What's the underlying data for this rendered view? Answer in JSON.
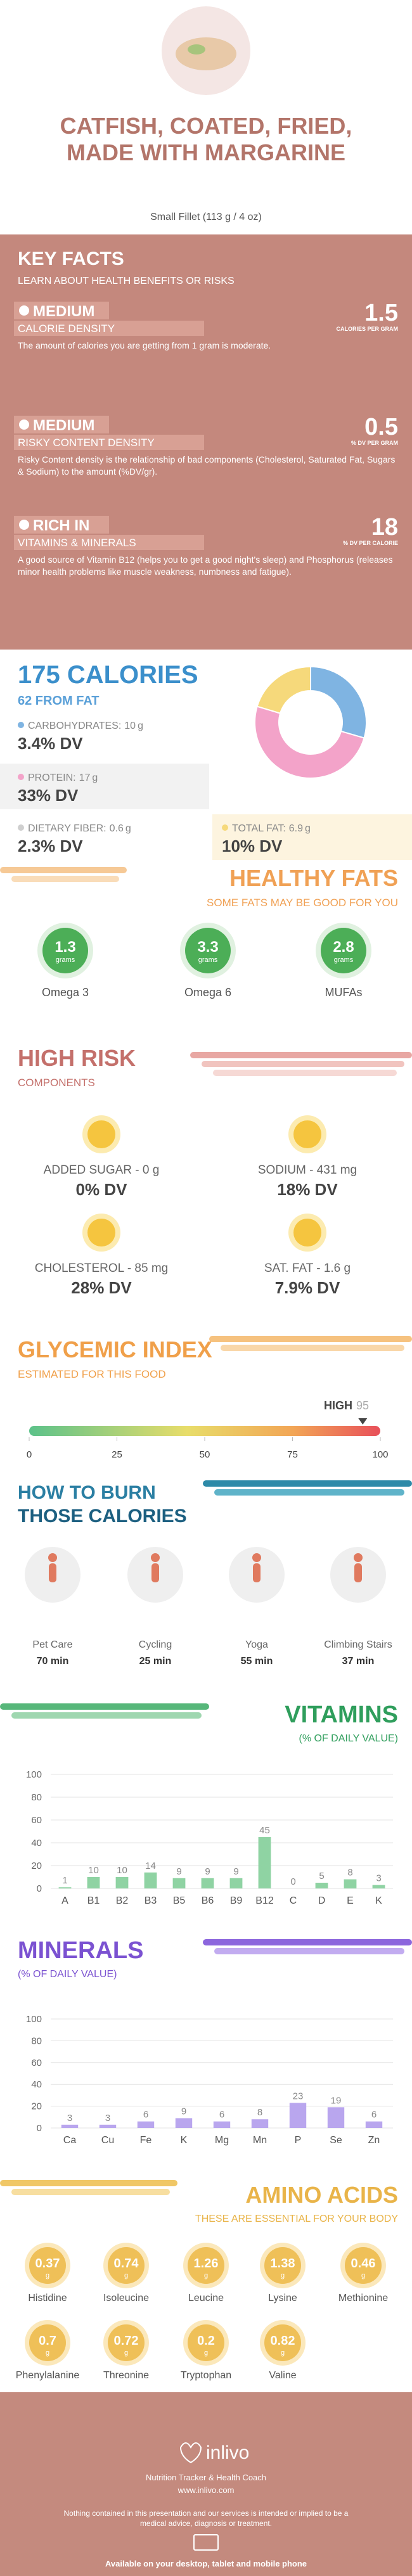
{
  "header": {
    "title": "CATFISH, COATED, FRIED, MADE WITH MARGARINE",
    "serving": "Small Fillet (113 g / 4 oz)"
  },
  "key_facts": {
    "title": "KEY FACTS",
    "subtitle": "LEARN ABOUT HEALTH BENEFITS OR RISKS",
    "facts": [
      {
        "level": "MEDIUM",
        "label": "CALORIE DENSITY",
        "value": 1.5,
        "unit": "CALORIES PER GRAM",
        "description": "The amount of calories you are getting from 1 gram is moderate."
      },
      {
        "level": "MEDIUM",
        "label": "RISKY CONTENT DENSITY",
        "value": 0.5,
        "unit": "% DV PER GRAM",
        "description": "Risky Content density is the relationship of bad components (Cholesterol, Saturated Fat, Sugars & Sodium) to the amount (%DV/gr)."
      },
      {
        "level": "RICH IN",
        "label": "VITAMINS & MINERALS",
        "value": 18,
        "unit": "% DV PER CALORIE",
        "description": "A good source of Vitamin B12 (helps you to get a good night's sleep) and Phosphorus (releases minor health problems like muscle weakness, numbness and fatigue)."
      }
    ]
  },
  "calories": {
    "title": "175 CALORIES",
    "subtitle": "62 FROM FAT",
    "nutrients": [
      {
        "name": "CARBOHYDRATES:",
        "amount": 10,
        "unit": "g",
        "dv": "3.4% DV",
        "color": "#7fb4e2"
      },
      {
        "name": "PROTEIN:",
        "amount": 17,
        "unit": "g",
        "dv": "33% DV",
        "color": "#f3a3c9"
      },
      {
        "name": "DIETARY FIBER:",
        "amount": 0.6,
        "unit": "g",
        "dv": "2.3% DV"
      },
      {
        "name": "TOTAL FAT:",
        "amount": 6.9,
        "unit": "g",
        "dv": "10% DV",
        "color": "#f6d97b"
      }
    ]
  },
  "healthy_fats": {
    "title": "HEALTHY FATS",
    "subtitle": "SOME FATS MAY BE GOOD FOR YOU",
    "items": [
      {
        "value": 1.3,
        "unit": "grams",
        "name": "Omega 3"
      },
      {
        "value": 3.3,
        "unit": "grams",
        "name": "Omega 6"
      },
      {
        "value": 2.8,
        "unit": "grams",
        "name": "MUFAs"
      }
    ]
  },
  "high_risk": {
    "title": "HIGH RISK",
    "subtitle": "COMPONENTS",
    "items": [
      {
        "label": "ADDED SUGAR - 0 g",
        "dv": "0% DV"
      },
      {
        "label": "SODIUM - 431 mg",
        "dv": "18% DV"
      },
      {
        "label": "CHOLESTEROL - 85 mg",
        "dv": "28% DV"
      },
      {
        "label": "SAT. FAT - 1.6 g",
        "dv": "7.9% DV"
      }
    ]
  },
  "glycemic_index": {
    "title": "GLYCEMIC INDEX",
    "subtitle": "ESTIMATED FOR THIS FOOD",
    "level": "HIGH",
    "value": 95,
    "xlim": [
      0,
      100
    ],
    "xticks": [
      0,
      25,
      50,
      75,
      100
    ]
  },
  "burn": {
    "title": "HOW TO BURN",
    "title2": "THOSE CALORIES",
    "activities": [
      {
        "name": "Pet Care",
        "time": "70 min"
      },
      {
        "name": "Cycling",
        "time": "25 min"
      },
      {
        "name": "Yoga",
        "time": "55 min"
      },
      {
        "name": "Climbing Stairs",
        "time": "37 min"
      }
    ]
  },
  "chart_data": [
    {
      "type": "bar",
      "title": "VITAMINS",
      "subtitle": "(% OF DAILY VALUE)",
      "categories": [
        "A",
        "B1",
        "B2",
        "B3",
        "B5",
        "B6",
        "B9",
        "B12",
        "C",
        "D",
        "E",
        "K"
      ],
      "values": [
        1,
        10,
        10,
        14,
        9,
        9,
        9,
        45,
        0,
        5,
        8,
        3
      ],
      "color": "#8fd3a3",
      "ylim": [
        0,
        100
      ],
      "yticks": [
        0,
        20,
        40,
        60,
        80,
        100
      ],
      "grid": true
    },
    {
      "type": "bar",
      "title": "MINERALS",
      "subtitle": "(% OF DAILY VALUE)",
      "categories": [
        "Ca",
        "Cu",
        "Fe",
        "K",
        "Mg",
        "Mn",
        "P",
        "Se",
        "Zn"
      ],
      "values": [
        3,
        3,
        6,
        9,
        6,
        8,
        23,
        19,
        6
      ],
      "color": "#b9a6ee",
      "ylim": [
        0,
        100
      ],
      "yticks": [
        0,
        20,
        40,
        60,
        80,
        100
      ],
      "grid": true
    }
  ],
  "amino_acids": {
    "title": "AMINO ACIDS",
    "subtitle": "THESE ARE ESSENTIAL FOR YOUR BODY",
    "unit": "g",
    "items": [
      {
        "name": "Histidine",
        "value": 0.37
      },
      {
        "name": "Isoleucine",
        "value": 0.74
      },
      {
        "name": "Leucine",
        "value": 1.26
      },
      {
        "name": "Lysine",
        "value": 1.38
      },
      {
        "name": "Methionine",
        "value": 0.46
      },
      {
        "name": "Phenylalanine",
        "value": 0.7
      },
      {
        "name": "Threonine",
        "value": 0.72
      },
      {
        "name": "Tryptophan",
        "value": 0.2
      },
      {
        "name": "Valine",
        "value": 0.82
      }
    ]
  },
  "footer": {
    "brand": "inlivo",
    "tagline": "Nutrition Tracker & Health Coach",
    "url": "www.inlivo.com",
    "disclaimer": "Nothing contained in this presentation and our services is intended or implied to be a medical advice, diagnosis or treatment.",
    "availability": "Available on your desktop, tablet and mobile phone"
  }
}
